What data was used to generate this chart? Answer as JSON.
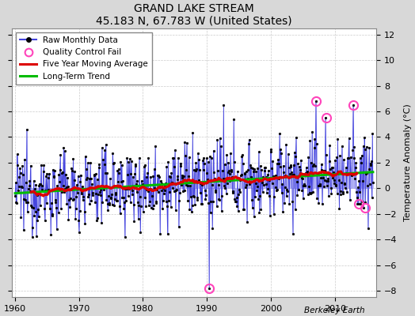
{
  "title": "GRAND LAKE STREAM",
  "subtitle": "45.183 N, 67.783 W (United States)",
  "ylabel": "Temperature Anomaly (°C)",
  "credit": "Berkeley Earth",
  "xlim": [
    1959.5,
    2016.5
  ],
  "ylim": [
    -8.5,
    12.5
  ],
  "yticks": [
    -8,
    -6,
    -4,
    -2,
    0,
    2,
    4,
    6,
    8,
    10,
    12
  ],
  "xticks": [
    1960,
    1970,
    1980,
    1990,
    2000,
    2010
  ],
  "background_color": "#d8d8d8",
  "plot_bg_color": "#ffffff",
  "raw_line_color": "#4444dd",
  "raw_fill_color": "#8888ee",
  "raw_marker_color": "#000000",
  "moving_avg_color": "#dd0000",
  "trend_color": "#00bb00",
  "qc_fail_color": "#ff44bb",
  "seed": 12345
}
